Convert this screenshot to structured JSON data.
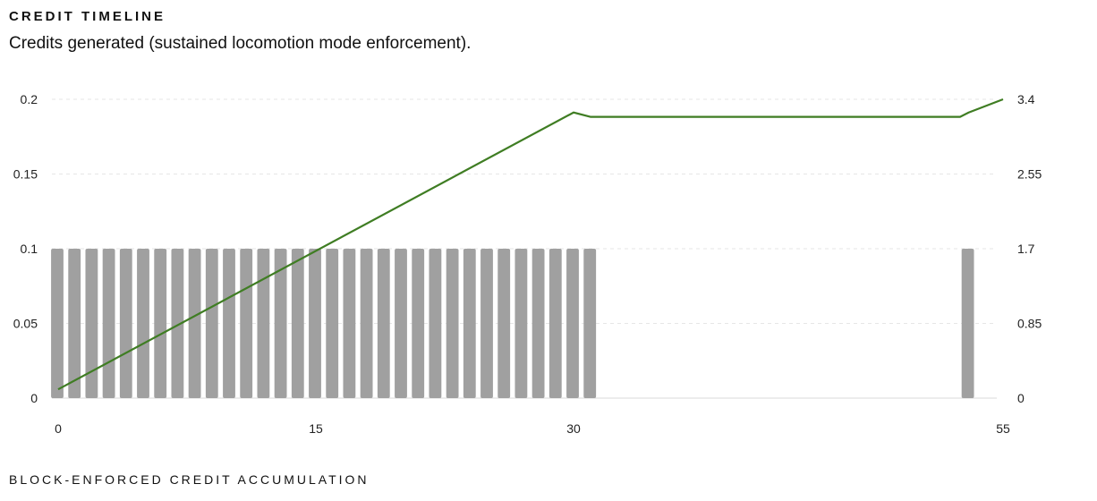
{
  "header": {
    "title": "CREDIT TIMELINE",
    "subtitle": "Credits generated (sustained locomotion mode enforcement)."
  },
  "footer": {
    "label": "BLOCK-ENFORCED CREDIT ACCUMULATION"
  },
  "colors": {
    "bar": "#a0a0a0",
    "line": "#3f7d23",
    "grid": "#e6e6e6",
    "axis": "#d8d8d8"
  },
  "chart_data": {
    "type": "bar+line",
    "x_ticks": [
      "0",
      "15",
      "30",
      "55"
    ],
    "xlim": [
      0,
      55
    ],
    "y_left": {
      "ticks": [
        "0",
        "0.05",
        "0.1",
        "0.15",
        "0.2"
      ],
      "ylim": [
        0,
        0.2
      ]
    },
    "y_right": {
      "ticks": [
        "0",
        "0.85",
        "1.7",
        "2.55",
        "3.4"
      ],
      "ylim": [
        0,
        3.4
      ]
    },
    "grid": true,
    "series": [
      {
        "type": "bar",
        "axis": "left",
        "x": [
          0,
          1,
          2,
          3,
          4,
          5,
          6,
          7,
          8,
          9,
          10,
          11,
          12,
          13,
          14,
          15,
          16,
          17,
          18,
          19,
          20,
          21,
          22,
          23,
          24,
          25,
          26,
          27,
          28,
          29,
          30,
          31,
          53
        ],
        "values": [
          0.1,
          0.1,
          0.1,
          0.1,
          0.1,
          0.1,
          0.1,
          0.1,
          0.1,
          0.1,
          0.1,
          0.1,
          0.1,
          0.1,
          0.1,
          0.1,
          0.1,
          0.1,
          0.1,
          0.1,
          0.1,
          0.1,
          0.1,
          0.1,
          0.1,
          0.1,
          0.1,
          0.1,
          0.1,
          0.1,
          0.1,
          0.1,
          0.1
        ]
      },
      {
        "type": "line",
        "axis": "right",
        "points": [
          [
            0,
            0.1
          ],
          [
            30,
            3.25
          ],
          [
            31,
            3.2
          ],
          [
            52.5,
            3.2
          ],
          [
            53,
            3.25
          ],
          [
            55,
            3.4
          ]
        ]
      }
    ]
  }
}
